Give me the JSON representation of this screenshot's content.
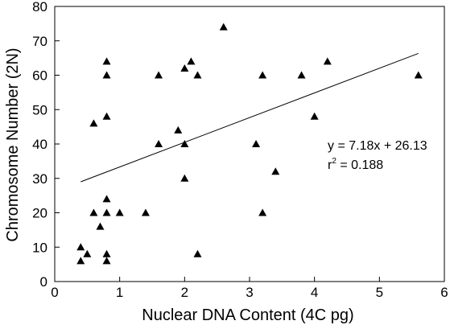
{
  "chart_data": {
    "type": "scatter",
    "xlabel": "Nuclear DNA Content (4C pg)",
    "ylabel": "Chromosome Number (2N)",
    "xlim": [
      0,
      6
    ],
    "ylim": [
      0,
      80
    ],
    "x_ticks": [
      "0",
      "1",
      "2",
      "3",
      "4",
      "5",
      "6"
    ],
    "y_ticks": [
      "0",
      "10",
      "20",
      "30",
      "40",
      "50",
      "60",
      "70",
      "80"
    ],
    "marker": "filled-triangle",
    "points": [
      {
        "x": 0.4,
        "y": 6
      },
      {
        "x": 0.4,
        "y": 10
      },
      {
        "x": 0.5,
        "y": 8
      },
      {
        "x": 0.6,
        "y": 20
      },
      {
        "x": 0.6,
        "y": 46
      },
      {
        "x": 0.7,
        "y": 16
      },
      {
        "x": 0.8,
        "y": 6
      },
      {
        "x": 0.8,
        "y": 8
      },
      {
        "x": 0.8,
        "y": 20
      },
      {
        "x": 0.8,
        "y": 24
      },
      {
        "x": 0.8,
        "y": 48
      },
      {
        "x": 0.8,
        "y": 60
      },
      {
        "x": 0.8,
        "y": 64
      },
      {
        "x": 1.0,
        "y": 20
      },
      {
        "x": 1.4,
        "y": 20
      },
      {
        "x": 1.6,
        "y": 40
      },
      {
        "x": 1.6,
        "y": 60
      },
      {
        "x": 1.9,
        "y": 44
      },
      {
        "x": 2.0,
        "y": 30
      },
      {
        "x": 2.0,
        "y": 40
      },
      {
        "x": 2.0,
        "y": 62
      },
      {
        "x": 2.1,
        "y": 64
      },
      {
        "x": 2.2,
        "y": 60
      },
      {
        "x": 2.2,
        "y": 8
      },
      {
        "x": 2.6,
        "y": 74
      },
      {
        "x": 3.1,
        "y": 40
      },
      {
        "x": 3.2,
        "y": 60
      },
      {
        "x": 3.2,
        "y": 20
      },
      {
        "x": 3.4,
        "y": 32
      },
      {
        "x": 3.8,
        "y": 60
      },
      {
        "x": 4.0,
        "y": 48
      },
      {
        "x": 4.2,
        "y": 64
      },
      {
        "x": 5.6,
        "y": 60
      }
    ],
    "trendline": {
      "slope": 7.18,
      "intercept": 26.13,
      "x_from": 0.4,
      "x_to": 5.6
    },
    "annotations": {
      "equation": "y = 7.18x + 26.13",
      "r_prefix": "r",
      "r_sup": "2",
      "r_value": " = 0.188"
    },
    "colors": {
      "marker": "#000000",
      "line": "#000000",
      "axis": "#000000"
    },
    "grid": false,
    "legend": "none"
  }
}
